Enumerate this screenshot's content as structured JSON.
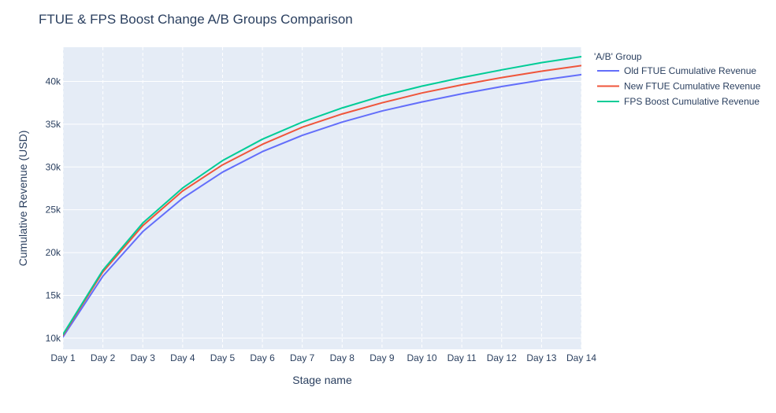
{
  "chart_data": {
    "type": "line",
    "title": "FTUE & FPS Boost Change A/B Groups Comparison",
    "xlabel": "Stage name",
    "ylabel": "Cumulative Revenue (USD)",
    "categories": [
      "Day 1",
      "Day 2",
      "Day 3",
      "Day 4",
      "Day 5",
      "Day 6",
      "Day 7",
      "Day 8",
      "Day 9",
      "Day 10",
      "Day 11",
      "Day 12",
      "Day 13",
      "Day 14"
    ],
    "ylim": [
      8700,
      44000
    ],
    "yticks": [
      10000,
      15000,
      20000,
      25000,
      30000,
      35000,
      40000
    ],
    "ytick_labels": [
      "10k",
      "15k",
      "20k",
      "25k",
      "30k",
      "35k",
      "40k"
    ],
    "legend": {
      "title": "'A/B' Group",
      "placement": "right"
    },
    "grid": true,
    "series": [
      {
        "name": "Old FTUE Cumulative Revenue",
        "color": "#636efa",
        "values": [
          10150,
          17250,
          22450,
          26350,
          29400,
          31800,
          33700,
          35250,
          36550,
          37600,
          38550,
          39400,
          40150,
          40800
        ]
      },
      {
        "name": "New FTUE Cumulative Revenue",
        "color": "#ef553b",
        "values": [
          10350,
          17750,
          23150,
          27200,
          30250,
          32650,
          34650,
          36200,
          37500,
          38650,
          39600,
          40450,
          41200,
          41850
        ]
      },
      {
        "name": "FPS Boost Cumulative Revenue",
        "color": "#00cc96",
        "values": [
          10450,
          17950,
          23450,
          27550,
          30750,
          33250,
          35250,
          36900,
          38300,
          39450,
          40450,
          41350,
          42200,
          42900
        ]
      }
    ]
  }
}
